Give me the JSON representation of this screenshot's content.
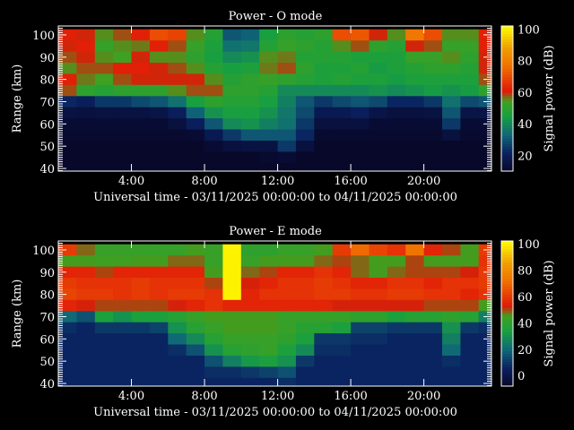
{
  "chart_data": [
    {
      "type": "heatmap",
      "title": "Power - O mode",
      "xlabel": "Universal time - 03/11/2025 00:00:00 to 04/11/2025 00:00:00",
      "ylabel": "Range (km)",
      "colorbar_label": "Signal power (dB)",
      "xlim": [
        0,
        23.7
      ],
      "ylim": [
        38.8,
        104
      ],
      "clim": [
        10,
        102
      ],
      "x_ticks": [
        "4:00",
        "8:00",
        "12:00",
        "16:00",
        "20:00"
      ],
      "x_tick_values": [
        4,
        8,
        12,
        16,
        20
      ],
      "y_ticks": [
        40,
        50,
        60,
        70,
        80,
        90,
        100
      ],
      "colorbar_ticks": [
        20,
        40,
        60,
        80,
        100
      ],
      "hours": [
        0,
        1,
        2,
        3,
        4,
        5,
        6,
        7,
        8,
        9,
        10,
        11,
        12,
        13,
        14,
        15,
        16,
        17,
        18,
        19,
        20,
        21,
        22,
        23
      ],
      "ranges_km": [
        100,
        95,
        90,
        85,
        80,
        75,
        70,
        65,
        60,
        55,
        50,
        45,
        40
      ],
      "values_db": [
        [
          62,
          60,
          58,
          55,
          62,
          58,
          22,
          15,
          12,
          11,
          10,
          10,
          10
        ],
        [
          60,
          62,
          60,
          58,
          56,
          50,
          20,
          14,
          12,
          11,
          10,
          10,
          10
        ],
        [
          55,
          52,
          55,
          58,
          54,
          48,
          25,
          15,
          12,
          11,
          10,
          10,
          10
        ],
        [
          58,
          55,
          54,
          62,
          58,
          50,
          25,
          15,
          12,
          11,
          10,
          10,
          10
        ],
        [
          62,
          56,
          60,
          62,
          60,
          50,
          28,
          15,
          12,
          11,
          10,
          10,
          10
        ],
        [
          70,
          62,
          55,
          60,
          60,
          50,
          30,
          16,
          12,
          11,
          10,
          10,
          10
        ],
        [
          68,
          58,
          55,
          58,
          60,
          55,
          35,
          20,
          14,
          11,
          10,
          10,
          10
        ],
        [
          55,
          52,
          50,
          55,
          60,
          58,
          45,
          32,
          20,
          12,
          10,
          10,
          10
        ],
        [
          48,
          46,
          45,
          48,
          55,
          58,
          50,
          42,
          30,
          18,
          12,
          10,
          10
        ],
        [
          30,
          35,
          40,
          45,
          48,
          50,
          48,
          45,
          40,
          25,
          14,
          10,
          10
        ],
        [
          32,
          36,
          42,
          46,
          50,
          50,
          48,
          45,
          42,
          30,
          15,
          10,
          10
        ],
        [
          45,
          48,
          55,
          56,
          52,
          48,
          45,
          42,
          38,
          30,
          15,
          11,
          10
        ],
        [
          50,
          52,
          56,
          58,
          50,
          40,
          38,
          36,
          35,
          30,
          25,
          12,
          10
        ],
        [
          48,
          50,
          48,
          50,
          48,
          40,
          30,
          28,
          25,
          22,
          14,
          10,
          10
        ],
        [
          50,
          48,
          48,
          46,
          46,
          40,
          25,
          18,
          14,
          11,
          10,
          10,
          10
        ],
        [
          70,
          55,
          48,
          46,
          48,
          40,
          28,
          18,
          14,
          11,
          10,
          10,
          10
        ],
        [
          72,
          58,
          46,
          48,
          46,
          40,
          30,
          20,
          14,
          11,
          10,
          10,
          10
        ],
        [
          60,
          50,
          46,
          44,
          46,
          42,
          28,
          16,
          12,
          11,
          10,
          10,
          10
        ],
        [
          55,
          48,
          46,
          46,
          44,
          40,
          22,
          14,
          12,
          11,
          10,
          10,
          10
        ],
        [
          78,
          60,
          52,
          48,
          46,
          42,
          22,
          14,
          12,
          11,
          10,
          10,
          10
        ],
        [
          70,
          58,
          52,
          50,
          46,
          44,
          25,
          15,
          12,
          11,
          10,
          10,
          10
        ],
        [
          55,
          52,
          55,
          50,
          46,
          42,
          35,
          30,
          25,
          14,
          10,
          10,
          10
        ],
        [
          55,
          52,
          50,
          48,
          46,
          44,
          28,
          16,
          12,
          11,
          10,
          10,
          10
        ],
        [
          62,
          62,
          60,
          60,
          58,
          50,
          30,
          16,
          12,
          11,
          10,
          10,
          10
        ]
      ]
    },
    {
      "type": "heatmap",
      "title": "Power - E mode",
      "xlabel": "Universal time - 03/11/2025 00:00:00 to 04/11/2025 00:00:00",
      "ylabel": "Range (km)",
      "colorbar_label": "Signal power (dB)",
      "xlim": [
        0,
        23.7
      ],
      "ylim": [
        38.8,
        104
      ],
      "clim": [
        -8,
        102
      ],
      "x_ticks": [
        "4:00",
        "8:00",
        "12:00",
        "16:00",
        "20:00"
      ],
      "x_tick_values": [
        4,
        8,
        12,
        16,
        20
      ],
      "y_ticks": [
        40,
        50,
        60,
        70,
        80,
        90,
        100
      ],
      "colorbar_ticks": [
        0,
        20,
        40,
        60,
        80,
        100
      ],
      "hours": [
        0,
        1,
        2,
        3,
        4,
        5,
        6,
        7,
        8,
        9,
        10,
        11,
        12,
        13,
        14,
        15,
        16,
        17,
        18,
        19,
        20,
        21,
        22,
        23
      ],
      "ranges_km": [
        100,
        95,
        90,
        85,
        80,
        75,
        70,
        65,
        60,
        55,
        50,
        45,
        40
      ],
      "values_db": [
        [
          60,
          45,
          55,
          60,
          62,
          55,
          20,
          8,
          6,
          6,
          6,
          6,
          6
        ],
        [
          48,
          45,
          55,
          58,
          60,
          52,
          15,
          6,
          6,
          6,
          6,
          6,
          6
        ],
        [
          42,
          44,
          50,
          58,
          60,
          50,
          35,
          10,
          6,
          6,
          6,
          6,
          6
        ],
        [
          42,
          44,
          55,
          58,
          58,
          50,
          30,
          10,
          6,
          6,
          6,
          6,
          6
        ],
        [
          42,
          45,
          55,
          60,
          60,
          50,
          35,
          10,
          6,
          6,
          6,
          6,
          6
        ],
        [
          42,
          45,
          55,
          58,
          58,
          50,
          35,
          12,
          6,
          6,
          6,
          6,
          6
        ],
        [
          42,
          48,
          55,
          58,
          60,
          52,
          38,
          30,
          20,
          8,
          6,
          6,
          6
        ],
        [
          45,
          48,
          55,
          58,
          60,
          55,
          42,
          38,
          28,
          15,
          6,
          6,
          6
        ],
        [
          42,
          42,
          45,
          50,
          58,
          58,
          45,
          42,
          38,
          30,
          15,
          8,
          6
        ],
        [
          100,
          100,
          100,
          100,
          100,
          55,
          45,
          45,
          42,
          38,
          25,
          8,
          6
        ],
        [
          40,
          42,
          48,
          52,
          55,
          55,
          45,
          45,
          42,
          40,
          32,
          10,
          6
        ],
        [
          40,
          45,
          50,
          55,
          58,
          55,
          45,
          45,
          42,
          42,
          35,
          12,
          6
        ],
        [
          42,
          45,
          55,
          58,
          58,
          55,
          42,
          42,
          40,
          35,
          30,
          15,
          8
        ],
        [
          42,
          45,
          55,
          58,
          58,
          55,
          42,
          38,
          35,
          28,
          10,
          6,
          6
        ],
        [
          45,
          48,
          58,
          60,
          60,
          55,
          42,
          38,
          10,
          8,
          6,
          6,
          6
        ],
        [
          60,
          50,
          55,
          58,
          60,
          52,
          42,
          35,
          10,
          8,
          6,
          6,
          6
        ],
        [
          70,
          48,
          48,
          55,
          58,
          52,
          40,
          12,
          8,
          6,
          6,
          6,
          6
        ],
        [
          62,
          45,
          45,
          55,
          58,
          52,
          40,
          12,
          8,
          6,
          6,
          6,
          6
        ],
        [
          58,
          45,
          48,
          58,
          60,
          52,
          35,
          10,
          6,
          6,
          6,
          6,
          6
        ],
        [
          72,
          50,
          50,
          58,
          60,
          52,
          38,
          10,
          6,
          6,
          6,
          6,
          6
        ],
        [
          55,
          45,
          50,
          55,
          58,
          50,
          38,
          10,
          6,
          6,
          6,
          6,
          6
        ],
        [
          50,
          45,
          50,
          58,
          58,
          50,
          40,
          30,
          25,
          20,
          8,
          6,
          6
        ],
        [
          45,
          45,
          52,
          58,
          55,
          50,
          38,
          10,
          6,
          6,
          6,
          6,
          6
        ],
        [
          60,
          58,
          60,
          60,
          58,
          45,
          25,
          8,
          6,
          6,
          6,
          6,
          6
        ]
      ]
    }
  ],
  "colormap": [
    "#08082a",
    "#0a2060",
    "#106878",
    "#18a040",
    "#40a020",
    "#e01808",
    "#f07000",
    "#f0a000",
    "#ffff00"
  ]
}
